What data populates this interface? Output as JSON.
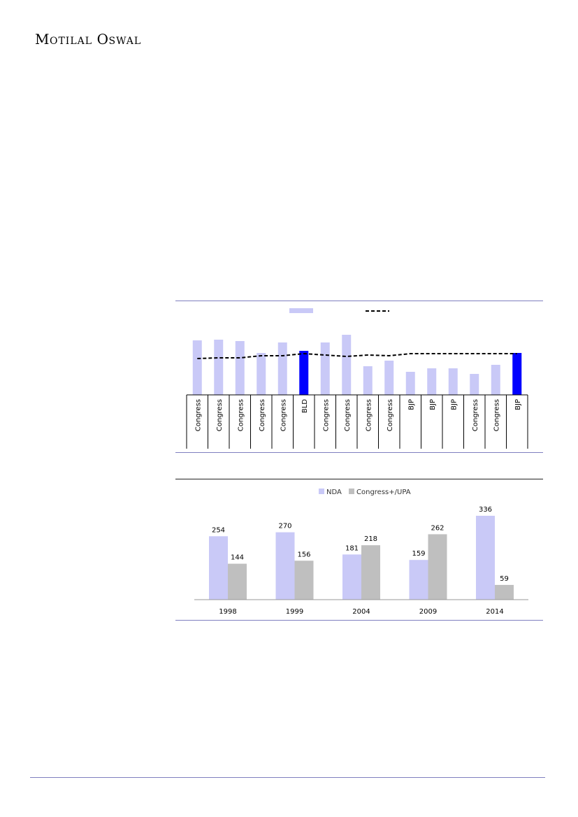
{
  "header": {
    "brand_first_initial": "M",
    "brand_first_rest": "OTILAL",
    "brand_second_initial": "O",
    "brand_second_rest": "SWAL"
  },
  "colors": {
    "accent_rule": "#7f7fbf",
    "light_bar": "#c9c9f7",
    "highlight_bar": "#0000ff",
    "grey_bar": "#bfbfbf"
  },
  "chart_data": [
    {
      "type": "bar",
      "categories": [
        "Congress",
        "Congress",
        "Congress",
        "Congress",
        "Congress",
        "BLD",
        "Congress",
        "Congress",
        "Congress",
        "Congress",
        "BJP",
        "BJP",
        "BJP",
        "Congress",
        "Congress",
        "BJP"
      ],
      "series": [
        {
          "values": [
            78,
            79,
            77,
            60,
            75,
            63,
            75,
            86,
            41,
            49,
            33,
            38,
            38,
            30,
            43,
            60
          ],
          "highlight_indices": [
            5,
            15
          ]
        },
        {
          "type": "line",
          "dashed": true,
          "values": [
            52,
            53,
            53,
            56,
            56,
            59,
            57,
            55,
            57,
            56,
            59,
            59,
            59,
            59,
            59,
            59
          ]
        }
      ],
      "legend": "top-center",
      "grid": false
    },
    {
      "type": "bar",
      "categories": [
        "1998",
        "1999",
        "2004",
        "2009",
        "2014"
      ],
      "series": [
        {
          "name": "NDA",
          "values": [
            254,
            270,
            181,
            159,
            336
          ]
        },
        {
          "name": "Congress+/UPA",
          "values": [
            144,
            156,
            218,
            262,
            59
          ]
        }
      ],
      "legend": "top-center",
      "grid": false
    }
  ]
}
